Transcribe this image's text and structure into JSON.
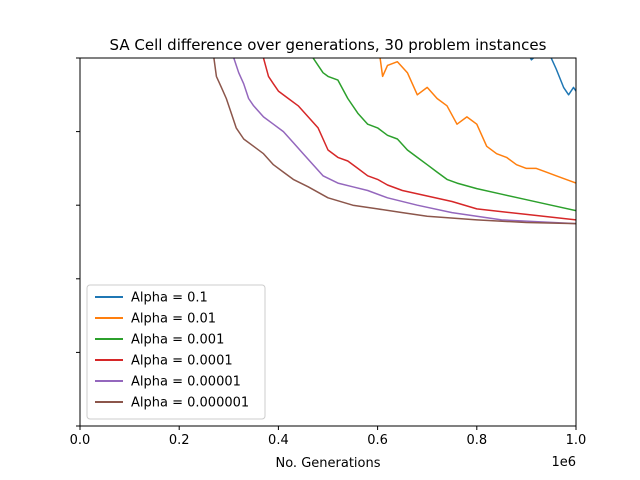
{
  "chart_data": {
    "type": "line",
    "title": "SA Cell difference over generations, 30 problem instances",
    "xlabel": "No. Generations",
    "ylabel": "",
    "x_offset_text": "1e6",
    "xlim": [
      0,
      1000000
    ],
    "ylim": [
      0,
      1
    ],
    "x_ticks": [
      0,
      200000,
      400000,
      600000,
      800000,
      1000000
    ],
    "x_tick_labels": [
      "0.0",
      "0.2",
      "0.4",
      "0.6",
      "0.8",
      "1.0"
    ],
    "y_ticks": [
      0.0,
      0.2,
      0.4,
      0.6,
      0.8,
      1.0
    ],
    "y_tick_labels": [
      "",
      "",
      "",
      "",
      "",
      ""
    ],
    "grid": false,
    "legend_position": "lower-left",
    "series": [
      {
        "name": "Alpha = 0.1",
        "color": "#1f77b4",
        "x": [
          900000,
          910000,
          940000,
          960000,
          975000,
          985000,
          995000,
          1000000
        ],
        "y": [
          1.02,
          0.995,
          1.03,
          0.97,
          0.92,
          0.9,
          0.92,
          0.91
        ]
      },
      {
        "name": "Alpha = 0.01",
        "color": "#ff7f0e",
        "x": [
          600000,
          610000,
          620000,
          640000,
          660000,
          680000,
          700000,
          720000,
          740000,
          760000,
          780000,
          800000,
          820000,
          840000,
          860000,
          880000,
          900000,
          920000,
          940000,
          960000,
          980000,
          1000000
        ],
        "y": [
          1.05,
          0.95,
          0.98,
          0.99,
          0.96,
          0.9,
          0.92,
          0.89,
          0.87,
          0.82,
          0.84,
          0.82,
          0.76,
          0.74,
          0.73,
          0.71,
          0.7,
          0.7,
          0.69,
          0.68,
          0.67,
          0.66
        ]
      },
      {
        "name": "Alpha = 0.001",
        "color": "#2ca02c",
        "x": [
          470000,
          490000,
          500000,
          520000,
          540000,
          560000,
          580000,
          600000,
          620000,
          640000,
          660000,
          680000,
          700000,
          720000,
          740000,
          760000,
          800000,
          850000,
          900000,
          950000,
          1000000
        ],
        "y": [
          1.0,
          0.96,
          0.95,
          0.94,
          0.89,
          0.85,
          0.82,
          0.81,
          0.79,
          0.78,
          0.75,
          0.73,
          0.71,
          0.69,
          0.67,
          0.66,
          0.645,
          0.63,
          0.615,
          0.6,
          0.585
        ]
      },
      {
        "name": "Alpha = 0.0001",
        "color": "#d62728",
        "x": [
          370000,
          380000,
          390000,
          400000,
          420000,
          440000,
          460000,
          480000,
          500000,
          520000,
          540000,
          560000,
          580000,
          600000,
          620000,
          650000,
          700000,
          750000,
          800000,
          900000,
          1000000
        ],
        "y": [
          1.0,
          0.95,
          0.93,
          0.91,
          0.89,
          0.87,
          0.84,
          0.81,
          0.75,
          0.73,
          0.72,
          0.7,
          0.68,
          0.67,
          0.655,
          0.64,
          0.625,
          0.61,
          0.59,
          0.575,
          0.56
        ]
      },
      {
        "name": "Alpha = 0.00001",
        "color": "#9467bd",
        "x": [
          310000,
          320000,
          330000,
          340000,
          350000,
          370000,
          390000,
          410000,
          430000,
          450000,
          470000,
          490000,
          520000,
          550000,
          580000,
          620000,
          680000,
          750000,
          850000,
          1000000
        ],
        "y": [
          1.0,
          0.96,
          0.93,
          0.89,
          0.87,
          0.84,
          0.82,
          0.8,
          0.77,
          0.74,
          0.71,
          0.68,
          0.66,
          0.65,
          0.64,
          0.62,
          0.6,
          0.58,
          0.56,
          0.55
        ]
      },
      {
        "name": "Alpha = 0.000001",
        "color": "#8c564b",
        "x": [
          270000,
          275000,
          285000,
          295000,
          305000,
          315000,
          330000,
          350000,
          370000,
          390000,
          410000,
          430000,
          460000,
          500000,
          550000,
          600000,
          650000,
          700000,
          800000,
          900000,
          1000000
        ],
        "y": [
          1.0,
          0.95,
          0.92,
          0.89,
          0.85,
          0.81,
          0.78,
          0.76,
          0.74,
          0.71,
          0.69,
          0.67,
          0.65,
          0.62,
          0.6,
          0.59,
          0.58,
          0.57,
          0.56,
          0.553,
          0.55
        ]
      }
    ]
  }
}
